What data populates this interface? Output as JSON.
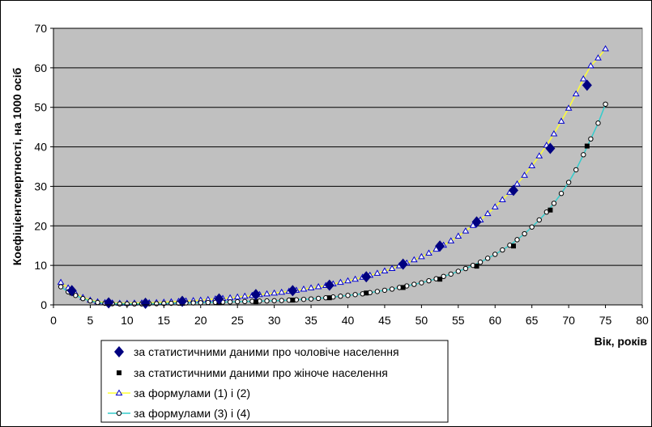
{
  "chart_data": {
    "type": "scatter",
    "title": "",
    "xlabel": "Вік, років",
    "ylabel": "Коефіцієнтсмертності, на 1000 осіб",
    "xlim": [
      0,
      80
    ],
    "ylim": [
      0,
      70
    ],
    "xticks": [
      0,
      5,
      10,
      15,
      20,
      25,
      30,
      35,
      40,
      45,
      50,
      55,
      60,
      65,
      70,
      75,
      80
    ],
    "yticks": [
      0,
      10,
      20,
      30,
      40,
      50,
      60,
      70
    ],
    "grid": "horizontal",
    "plot_background": "#c0c0c0",
    "legend_position": "bottom-left",
    "series": [
      {
        "name": "за статистичними даними про чоловіче населення",
        "marker": "diamond",
        "color": "#000080",
        "line": false,
        "x": [
          2.5,
          7.5,
          12.5,
          17.5,
          22.5,
          27.5,
          32.5,
          37.5,
          42.5,
          47.5,
          52.5,
          57.5,
          62.5,
          67.5,
          72.5
        ],
        "y": [
          3.6,
          0.5,
          0.4,
          0.9,
          1.5,
          2.6,
          3.6,
          5.0,
          7.1,
          10.3,
          14.9,
          21.0,
          29.0,
          39.6,
          55.6
        ]
      },
      {
        "name": "за статистичними даними про жіноче населення",
        "marker": "square",
        "color": "#000000",
        "line": false,
        "x": [
          2.5,
          7.5,
          12.5,
          17.5,
          22.5,
          27.5,
          32.5,
          37.5,
          42.5,
          47.5,
          52.5,
          57.5,
          62.5,
          67.5,
          72.5
        ],
        "y": [
          3.0,
          0.3,
          0.3,
          0.4,
          0.5,
          0.8,
          1.2,
          1.8,
          3.0,
          4.4,
          6.5,
          9.8,
          14.9,
          24.0,
          40.2
        ]
      },
      {
        "name": "за формулами (1) і (2)",
        "marker": "triangle",
        "color": "#0000cc",
        "line_color": "#ffff33",
        "line": true,
        "x": [
          1,
          2,
          3,
          4,
          5,
          6,
          7,
          8,
          9,
          10,
          11,
          12,
          13,
          14,
          15,
          16,
          17,
          18,
          19,
          20,
          21,
          22,
          23,
          24,
          25,
          26,
          27,
          28,
          29,
          30,
          31,
          32,
          33,
          34,
          35,
          36,
          37,
          38,
          39,
          40,
          41,
          42,
          43,
          44,
          45,
          46,
          47,
          48,
          49,
          50,
          51,
          52,
          53,
          54,
          55,
          56,
          57,
          58,
          59,
          60,
          61,
          62,
          63,
          64,
          65,
          66,
          67,
          68,
          69,
          70,
          71,
          72,
          73,
          74,
          75
        ],
        "y": [
          5.7,
          4.3,
          2.9,
          1.9,
          1.2,
          0.8,
          0.6,
          0.5,
          0.4,
          0.4,
          0.45,
          0.5,
          0.55,
          0.6,
          0.7,
          0.8,
          0.9,
          1.0,
          1.1,
          1.2,
          1.35,
          1.5,
          1.65,
          1.8,
          2.0,
          2.2,
          2.4,
          2.6,
          2.8,
          3.0,
          3.2,
          3.45,
          3.7,
          4.0,
          4.3,
          4.6,
          4.9,
          5.3,
          5.7,
          6.1,
          6.5,
          7.0,
          7.5,
          8.0,
          8.6,
          9.2,
          9.9,
          10.6,
          11.4,
          12.2,
          13.1,
          14.1,
          15.1,
          16.2,
          17.4,
          18.7,
          20.1,
          21.5,
          23.1,
          24.8,
          26.6,
          28.5,
          30.6,
          32.8,
          35.2,
          37.7,
          40.4,
          43.3,
          46.5,
          49.8,
          53.4,
          57.2,
          60.5,
          62.5,
          64.8
        ]
      },
      {
        "name": "за формулами (3) і (4)",
        "marker": "circle",
        "color": "#000000",
        "line_color": "#33cccc",
        "line": true,
        "x": [
          1,
          2,
          3,
          4,
          5,
          6,
          7,
          8,
          9,
          10,
          11,
          12,
          13,
          14,
          15,
          16,
          17,
          18,
          19,
          20,
          21,
          22,
          23,
          24,
          25,
          26,
          27,
          28,
          29,
          30,
          31,
          32,
          33,
          34,
          35,
          36,
          37,
          38,
          39,
          40,
          41,
          42,
          43,
          44,
          45,
          46,
          47,
          48,
          49,
          50,
          51,
          52,
          53,
          54,
          55,
          56,
          57,
          58,
          59,
          60,
          61,
          62,
          63,
          64,
          65,
          66,
          67,
          68,
          69,
          70,
          71,
          72,
          73,
          74,
          75
        ],
        "y": [
          4.6,
          3.3,
          2.4,
          1.6,
          1.0,
          0.6,
          0.4,
          0.3,
          0.25,
          0.25,
          0.25,
          0.25,
          0.3,
          0.3,
          0.35,
          0.4,
          0.45,
          0.5,
          0.5,
          0.55,
          0.6,
          0.65,
          0.7,
          0.75,
          0.8,
          0.85,
          0.9,
          0.95,
          1.0,
          1.05,
          1.1,
          1.2,
          1.3,
          1.4,
          1.5,
          1.65,
          1.8,
          2.0,
          2.2,
          2.4,
          2.6,
          2.8,
          3.1,
          3.4,
          3.7,
          4.0,
          4.4,
          4.8,
          5.2,
          5.6,
          6.1,
          6.6,
          7.2,
          7.8,
          8.5,
          9.2,
          10.0,
          10.8,
          11.8,
          12.8,
          13.9,
          15.1,
          16.5,
          18.0,
          19.7,
          21.5,
          23.5,
          25.7,
          28.2,
          31.0,
          34.2,
          38.0,
          42.0,
          46.0,
          50.8
        ]
      }
    ]
  }
}
